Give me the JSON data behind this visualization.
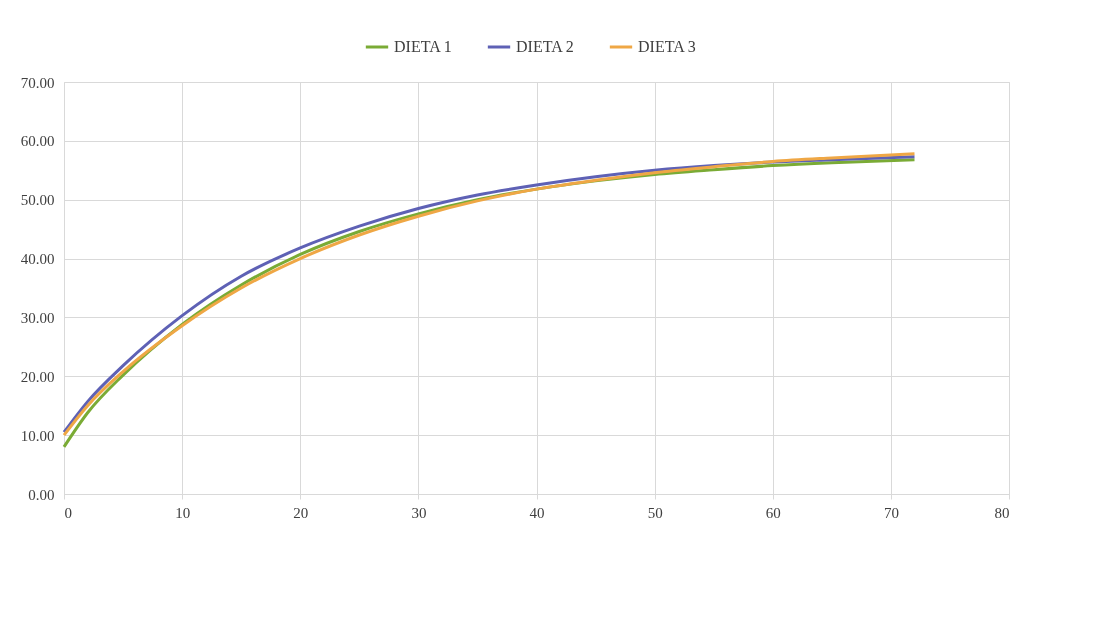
{
  "chart_data": {
    "type": "line",
    "x": [
      0,
      2,
      5,
      10,
      15,
      20,
      25,
      30,
      35,
      40,
      45,
      50,
      55,
      60,
      65,
      72
    ],
    "series": [
      {
        "name": "DIETA 1",
        "color": "#7aab35",
        "values": [
          8.0,
          13.8,
          20.2,
          28.8,
          35.5,
          40.7,
          44.6,
          47.6,
          50.0,
          51.8,
          53.2,
          54.3,
          55.1,
          55.8,
          56.3,
          56.8
        ]
      },
      {
        "name": "DIETA 2",
        "color": "#5e61b5",
        "values": [
          10.5,
          15.7,
          21.8,
          30.3,
          37.0,
          41.8,
          45.5,
          48.5,
          50.8,
          52.5,
          53.9,
          55.0,
          55.8,
          56.4,
          56.8,
          57.3
        ]
      },
      {
        "name": "DIETA 3",
        "color": "#efa745",
        "values": [
          10.0,
          15.0,
          20.8,
          28.6,
          35.0,
          40.0,
          44.0,
          47.2,
          49.8,
          51.8,
          53.3,
          54.6,
          55.6,
          56.5,
          57.1,
          57.8
        ]
      }
    ],
    "xlim": [
      0,
      80
    ],
    "xticks": [
      0,
      10,
      20,
      30,
      40,
      50,
      60,
      70,
      80
    ],
    "ylim": [
      0,
      70
    ],
    "yticks": [
      {
        "value": 0,
        "label": "0.00"
      },
      {
        "value": 10,
        "label": "10.00"
      },
      {
        "value": 20,
        "label": "20.00"
      },
      {
        "value": 30,
        "label": "30.00"
      },
      {
        "value": 40,
        "label": "40.00"
      },
      {
        "value": 50,
        "label": "50.00"
      },
      {
        "value": 60,
        "label": "60.00"
      },
      {
        "value": 70,
        "label": "70.00"
      }
    ],
    "grid": true,
    "legend": "top",
    "marker": "none",
    "line_style": "solid"
  }
}
